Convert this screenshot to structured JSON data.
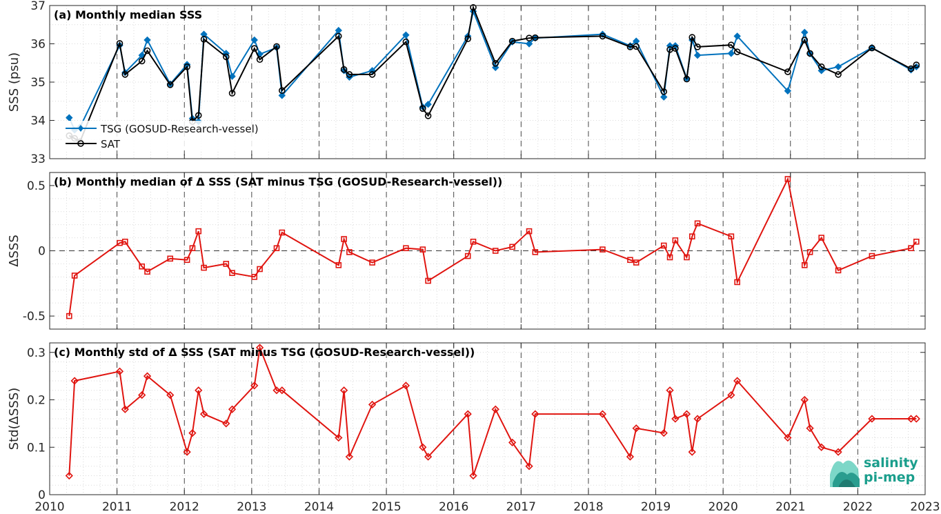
{
  "logo": {
    "line1": "salinity",
    "line2": "pi-mep"
  },
  "colors": {
    "tsg": "#0072bd",
    "sat": "#000000",
    "delta": "#e0140f",
    "logo_text": "#1a9e8c"
  },
  "chart_data": [
    {
      "type": "line",
      "title": "(a) Monthly median SSS",
      "xlabel": "",
      "ylabel": "SSS (psu)",
      "xlim": [
        2010,
        2023
      ],
      "ylim": [
        33,
        37
      ],
      "yticks": [
        "33",
        "34",
        "35",
        "36",
        "37"
      ],
      "grid": true,
      "legend": "top-left",
      "series": [
        {
          "name": "TSG (GOSUD-Research-vessel)",
          "marker": "diamond",
          "x": [
            2010.29,
            2010.37,
            2010.45,
            2011.04,
            2011.12,
            2011.37,
            2011.45,
            2011.79,
            2012.04,
            2012.12,
            2012.21,
            2012.29,
            2012.62,
            2012.71,
            2013.04,
            2013.12,
            2013.37,
            2013.45,
            2014.29,
            2014.37,
            2014.45,
            2014.79,
            2015.29,
            2015.54,
            2015.62,
            2016.21,
            2016.29,
            2016.62,
            2016.87,
            2017.12,
            2017.21,
            2018.21,
            2018.62,
            2018.71,
            2019.12,
            2019.21,
            2019.29,
            2019.46,
            2019.54,
            2019.62,
            2020.12,
            2020.21,
            2020.96,
            2021.21,
            2021.29,
            2021.46,
            2021.71,
            2022.21,
            2022.79,
            2022.87
          ],
          "values": [
            34.07,
            33.75,
            33.82,
            35.96,
            35.25,
            35.7,
            36.1,
            34.95,
            35.46,
            34.05,
            33.97,
            36.25,
            35.75,
            35.15,
            36.1,
            35.73,
            35.9,
            34.65,
            36.35,
            35.3,
            35.13,
            35.3,
            36.23,
            34.35,
            34.42,
            36.2,
            36.85,
            35.38,
            36.05,
            36.0,
            36.15,
            36.25,
            35.95,
            36.07,
            34.61,
            35.95,
            35.95,
            35.1,
            36.1,
            35.7,
            35.75,
            36.2,
            34.77,
            36.3,
            35.74,
            35.3,
            35.4,
            35.9,
            35.32,
            35.4
          ]
        },
        {
          "name": "SAT",
          "marker": "circle",
          "x": [
            2010.29,
            2010.37,
            2010.45,
            2011.04,
            2011.12,
            2011.37,
            2011.45,
            2011.79,
            2012.04,
            2012.12,
            2012.21,
            2012.29,
            2012.62,
            2012.71,
            2013.04,
            2013.12,
            2013.37,
            2013.45,
            2014.29,
            2014.37,
            2014.45,
            2014.79,
            2015.29,
            2015.54,
            2015.62,
            2016.21,
            2016.29,
            2016.62,
            2016.87,
            2017.12,
            2017.21,
            2018.21,
            2018.62,
            2018.71,
            2019.12,
            2019.21,
            2019.29,
            2019.46,
            2019.54,
            2019.62,
            2020.12,
            2020.21,
            2020.96,
            2021.21,
            2021.29,
            2021.46,
            2021.71,
            2022.21,
            2022.79,
            2022.87
          ],
          "values": [
            33.6,
            33.53,
            33.44,
            36.01,
            35.2,
            35.55,
            35.82,
            34.93,
            35.4,
            33.97,
            34.13,
            36.12,
            35.66,
            34.71,
            35.88,
            35.59,
            35.93,
            34.78,
            36.2,
            35.33,
            35.2,
            35.2,
            36.05,
            34.31,
            34.12,
            36.13,
            36.95,
            35.49,
            36.07,
            36.15,
            36.16,
            36.2,
            35.92,
            35.93,
            34.75,
            35.85,
            35.88,
            35.08,
            36.17,
            35.92,
            35.97,
            35.79,
            35.27,
            36.1,
            35.75,
            35.4,
            35.2,
            35.89,
            35.35,
            35.45
          ]
        }
      ]
    },
    {
      "type": "line",
      "title": "(b) Monthly median of Δ SSS (SAT minus TSG (GOSUD-Research-vessel))",
      "xlabel": "",
      "ylabel": "ΔSSS",
      "xlim": [
        2010,
        2023
      ],
      "ylim": [
        -0.6,
        0.6
      ],
      "yticks": [
        "-0.5",
        "0",
        "0.5"
      ],
      "grid": true,
      "series": [
        {
          "marker": "square",
          "x": [
            2010.29,
            2010.37,
            2011.04,
            2011.12,
            2011.37,
            2011.45,
            2011.79,
            2012.04,
            2012.12,
            2012.21,
            2012.29,
            2012.62,
            2012.71,
            2013.04,
            2013.12,
            2013.37,
            2013.45,
            2014.29,
            2014.37,
            2014.45,
            2014.79,
            2015.29,
            2015.54,
            2015.62,
            2016.21,
            2016.29,
            2016.62,
            2016.87,
            2017.12,
            2017.21,
            2018.21,
            2018.62,
            2018.71,
            2019.12,
            2019.21,
            2019.29,
            2019.46,
            2019.54,
            2019.62,
            2020.12,
            2020.21,
            2020.96,
            2021.21,
            2021.29,
            2021.46,
            2021.71,
            2022.21,
            2022.79,
            2022.87
          ],
          "values": [
            -0.5,
            -0.19,
            0.06,
            0.07,
            -0.12,
            -0.16,
            -0.06,
            -0.07,
            0.02,
            0.15,
            -0.13,
            -0.1,
            -0.17,
            -0.2,
            -0.14,
            0.02,
            0.14,
            -0.11,
            0.09,
            -0.01,
            -0.09,
            0.02,
            0.01,
            -0.23,
            -0.04,
            0.07,
            0.0,
            0.03,
            0.15,
            -0.01,
            0.01,
            -0.07,
            -0.09,
            0.04,
            -0.05,
            0.08,
            -0.05,
            0.11,
            0.21,
            0.11,
            -0.24,
            0.55,
            -0.11,
            -0.01,
            0.1,
            -0.15,
            -0.04,
            0.02,
            0.07
          ]
        }
      ]
    },
    {
      "type": "line",
      "title": "(c) Monthly std of Δ SSS (SAT minus TSG (GOSUD-Research-vessel))",
      "xlabel": "",
      "ylabel": "Std(ΔSSS)",
      "xlim": [
        2010,
        2023
      ],
      "ylim": [
        0,
        0.32
      ],
      "yticks": [
        "0",
        "0.1",
        "0.2",
        "0.3"
      ],
      "xticks": [
        "2010",
        "2011",
        "2012",
        "2013",
        "2014",
        "2015",
        "2016",
        "2017",
        "2018",
        "2019",
        "2020",
        "2021",
        "2022",
        "2023"
      ],
      "grid": true,
      "series": [
        {
          "marker": "diamond",
          "x": [
            2010.29,
            2010.37,
            2011.04,
            2011.12,
            2011.37,
            2011.45,
            2011.79,
            2012.04,
            2012.12,
            2012.21,
            2012.29,
            2012.62,
            2012.71,
            2013.04,
            2013.12,
            2013.37,
            2013.45,
            2014.29,
            2014.37,
            2014.45,
            2014.79,
            2015.29,
            2015.54,
            2015.62,
            2016.21,
            2016.29,
            2016.62,
            2016.87,
            2017.12,
            2017.21,
            2018.21,
            2018.62,
            2018.71,
            2019.12,
            2019.21,
            2019.29,
            2019.46,
            2019.54,
            2019.62,
            2020.12,
            2020.21,
            2020.96,
            2021.21,
            2021.29,
            2021.46,
            2021.71,
            2022.21,
            2022.79,
            2022.87
          ],
          "values": [
            0.04,
            0.24,
            0.26,
            0.18,
            0.21,
            0.25,
            0.21,
            0.09,
            0.13,
            0.22,
            0.17,
            0.15,
            0.18,
            0.23,
            0.31,
            0.22,
            0.22,
            0.12,
            0.22,
            0.08,
            0.19,
            0.23,
            0.1,
            0.08,
            0.17,
            0.04,
            0.18,
            0.11,
            0.06,
            0.17,
            0.17,
            0.08,
            0.14,
            0.13,
            0.22,
            0.16,
            0.17,
            0.09,
            0.16,
            0.21,
            0.24,
            0.12,
            0.2,
            0.14,
            0.1,
            0.09,
            0.16,
            0.16,
            0.16
          ]
        }
      ]
    }
  ]
}
